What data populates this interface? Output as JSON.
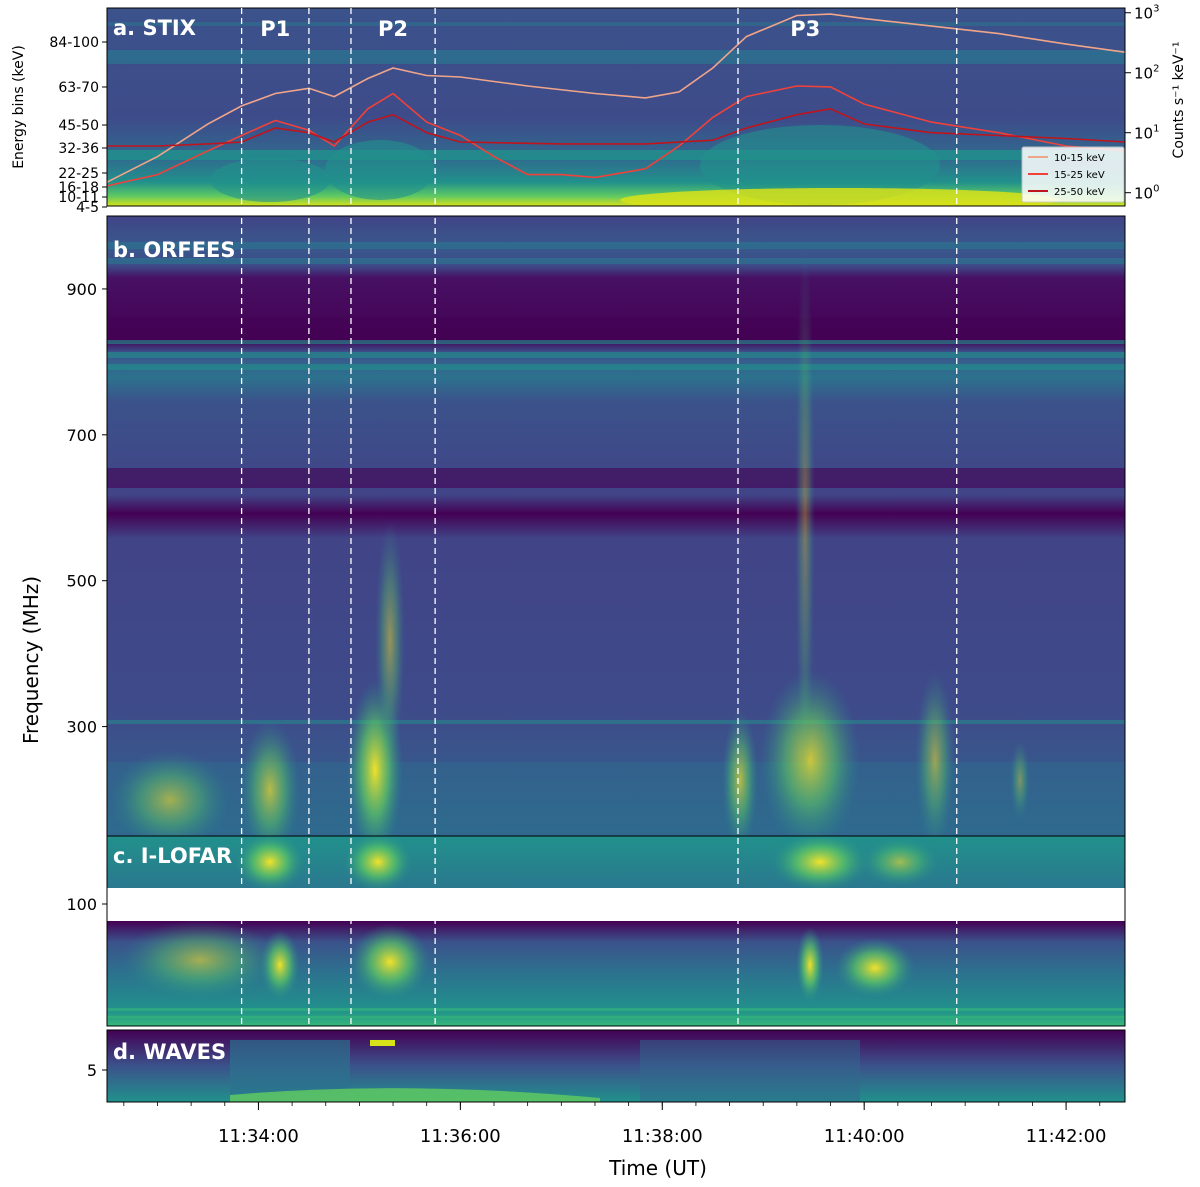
{
  "chart_data": [
    {
      "id": "a",
      "type": "heatmap",
      "panel_label": "a. STIX",
      "ylabel": "Energy bins (keV)",
      "y_tick_labels": [
        "4-5",
        "10-11",
        "16-18",
        "22-25",
        "32-36",
        "45-50",
        "63-70",
        "84-100"
      ],
      "right_ylabel": "Counts s⁻¹ keV⁻¹",
      "right_y_scale": "log",
      "right_ylim": [
        0.6,
        1200
      ],
      "right_y_tick_labels": [
        {
          "base": "10",
          "exp": "0",
          "value": 1
        },
        {
          "base": "10",
          "exp": "1",
          "value": 10
        },
        {
          "base": "10",
          "exp": "2",
          "value": 100
        },
        {
          "base": "10",
          "exp": "3",
          "value": 1000
        }
      ],
      "peak_labels": [
        {
          "label": "P1",
          "time": "11:34:10"
        },
        {
          "label": "P2",
          "time": "11:35:20"
        },
        {
          "label": "P3",
          "time": "11:39:25"
        }
      ],
      "legend": {
        "placement": "bottom-right",
        "entries": [
          "10-15 keV",
          "15-25 keV",
          "25-50 keV"
        ],
        "colors": [
          "#f0a58a",
          "#f0413a",
          "#c0141c"
        ]
      },
      "series": [
        {
          "name": "10-15 keV",
          "color": "#f0a58a",
          "x": [
            "11:32:30",
            "11:33:00",
            "11:33:30",
            "11:33:50",
            "11:34:10",
            "11:34:30",
            "11:34:45",
            "11:35:05",
            "11:35:20",
            "11:35:40",
            "11:36:00",
            "11:36:40",
            "11:37:20",
            "11:37:50",
            "11:38:10",
            "11:38:30",
            "11:38:50",
            "11:39:20",
            "11:39:40",
            "11:40:00",
            "11:40:40",
            "11:41:20",
            "11:42:00",
            "11:42:35"
          ],
          "y": [
            1.5,
            4,
            14,
            28,
            45,
            55,
            40,
            80,
            120,
            90,
            85,
            60,
            45,
            38,
            48,
            120,
            400,
            900,
            950,
            800,
            600,
            450,
            300,
            220
          ]
        },
        {
          "name": "15-25 keV",
          "color": "#f0413a",
          "x": [
            "11:32:30",
            "11:33:00",
            "11:33:30",
            "11:33:50",
            "11:34:10",
            "11:34:30",
            "11:34:45",
            "11:35:05",
            "11:35:20",
            "11:35:40",
            "11:36:00",
            "11:36:20",
            "11:36:40",
            "11:37:00",
            "11:37:20",
            "11:37:50",
            "11:38:10",
            "11:38:30",
            "11:38:50",
            "11:39:20",
            "11:39:40",
            "11:40:00",
            "11:40:40",
            "11:41:20",
            "11:42:00",
            "11:42:35"
          ],
          "y": [
            1.3,
            2,
            5,
            9,
            16,
            11,
            6,
            25,
            45,
            15,
            9,
            4,
            2,
            2,
            1.8,
            2.5,
            6,
            18,
            40,
            60,
            58,
            30,
            15,
            10,
            6,
            5
          ]
        },
        {
          "name": "25-50 keV",
          "color": "#c0141c",
          "x": [
            "11:32:30",
            "11:33:00",
            "11:33:30",
            "11:33:50",
            "11:34:10",
            "11:34:30",
            "11:34:45",
            "11:35:05",
            "11:35:20",
            "11:35:40",
            "11:36:00",
            "11:37:00",
            "11:37:50",
            "11:38:30",
            "11:38:50",
            "11:39:20",
            "11:39:40",
            "11:40:00",
            "11:40:40",
            "11:41:20",
            "11:42:00",
            "11:42:35"
          ],
          "y": [
            6,
            6,
            6.5,
            7,
            12,
            10,
            7,
            15,
            20,
            10,
            7,
            6.5,
            6.5,
            7.5,
            12,
            20,
            25,
            14,
            10,
            9,
            8,
            7
          ]
        }
      ]
    },
    {
      "id": "b",
      "type": "heatmap",
      "panel_label": "b. ORFEES",
      "ylabel": "Frequency (MHz)",
      "y_tick_labels": [
        "300",
        "500",
        "700",
        "900"
      ],
      "ylim_mhz": [
        150,
        1000
      ]
    },
    {
      "id": "c",
      "type": "heatmap",
      "panel_label": "c. I-LOFAR",
      "y_tick_labels": [
        "100"
      ],
      "data_gap_mhz": [
        90,
        110
      ]
    },
    {
      "id": "d",
      "type": "heatmap",
      "panel_label": "d. WAVES",
      "y_tick_labels": [
        "5"
      ]
    }
  ],
  "time_axis": {
    "xlabel": "Time (UT)",
    "xlim": [
      "11:32:30",
      "11:42:35"
    ],
    "tick_labels": [
      "11:34:00",
      "11:36:00",
      "11:38:00",
      "11:40:00",
      "11:42:00"
    ],
    "dashed_markers": [
      "11:33:50",
      "11:34:30",
      "11:34:55",
      "11:35:45",
      "11:38:45",
      "11:40:55"
    ]
  },
  "colors": {
    "colormap": "viridis",
    "marker_lines": "#ffffff"
  }
}
